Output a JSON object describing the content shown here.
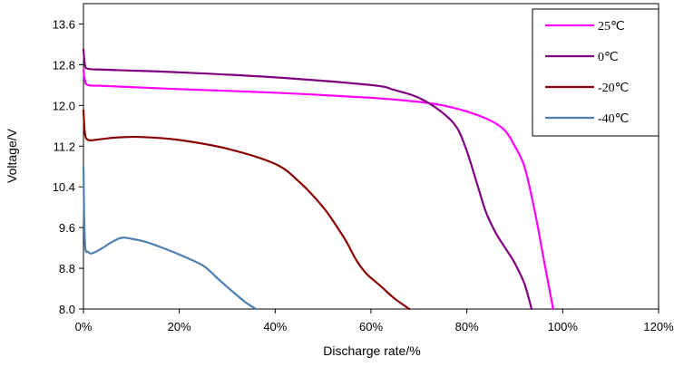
{
  "chart_data": {
    "type": "line",
    "title": "",
    "xlabel": "Discharge rate/%",
    "ylabel": "Voltage/V",
    "xlim": [
      0,
      120
    ],
    "ylim": [
      8.0,
      14.0
    ],
    "x_ticks": [
      "0%",
      "20%",
      "40%",
      "60%",
      "80%",
      "100%",
      "120%"
    ],
    "x_tick_values": [
      0,
      20,
      40,
      60,
      80,
      100,
      120
    ],
    "y_ticks": [
      "8.0",
      "8.8",
      "9.6",
      "10.4",
      "11.2",
      "12.0",
      "12.8",
      "13.6"
    ],
    "y_tick_values": [
      8.0,
      8.8,
      9.6,
      10.4,
      11.2,
      12.0,
      12.8,
      13.6
    ],
    "grid": false,
    "legend_position": "top-right",
    "series": [
      {
        "name": "25℃",
        "color": "#ff00ff",
        "x": [
          0,
          0.3,
          1,
          5,
          20,
          40,
          60,
          70,
          75,
          80,
          85,
          88,
          90,
          92,
          94,
          96,
          98
        ],
        "y": [
          12.7,
          12.5,
          12.4,
          12.38,
          12.32,
          12.25,
          12.15,
          12.07,
          12.0,
          11.88,
          11.7,
          11.5,
          11.2,
          10.8,
          10.0,
          9.0,
          8.0
        ]
      },
      {
        "name": "0℃",
        "color": "#800080",
        "x": [
          0,
          0.3,
          1,
          5,
          20,
          40,
          60,
          65,
          70,
          75,
          78,
          80,
          82,
          84,
          86,
          88,
          90,
          92,
          93.5
        ],
        "y": [
          13.1,
          12.8,
          12.72,
          12.7,
          12.65,
          12.55,
          12.4,
          12.3,
          12.15,
          11.85,
          11.55,
          11.1,
          10.5,
          9.9,
          9.5,
          9.2,
          8.9,
          8.5,
          8.0
        ]
      },
      {
        "name": "-20℃",
        "color": "#8b0000",
        "x": [
          0,
          0.3,
          1,
          3,
          7,
          12,
          20,
          30,
          40,
          45,
          50,
          53,
          55,
          57,
          59,
          62,
          65,
          68
        ],
        "y": [
          11.9,
          11.45,
          11.32,
          11.33,
          11.37,
          11.38,
          11.32,
          11.15,
          10.85,
          10.5,
          10.0,
          9.6,
          9.3,
          8.95,
          8.7,
          8.45,
          8.2,
          8.0
        ]
      },
      {
        "name": "-40℃",
        "color": "#4f7fb0",
        "x": [
          0,
          0.3,
          1,
          2,
          4,
          6,
          8,
          10,
          13,
          16,
          20,
          25,
          28,
          31,
          34,
          36
        ],
        "y": [
          10.8,
          9.3,
          9.12,
          9.1,
          9.2,
          9.32,
          9.4,
          9.38,
          9.32,
          9.22,
          9.07,
          8.85,
          8.6,
          8.35,
          8.12,
          8.0
        ]
      }
    ]
  }
}
